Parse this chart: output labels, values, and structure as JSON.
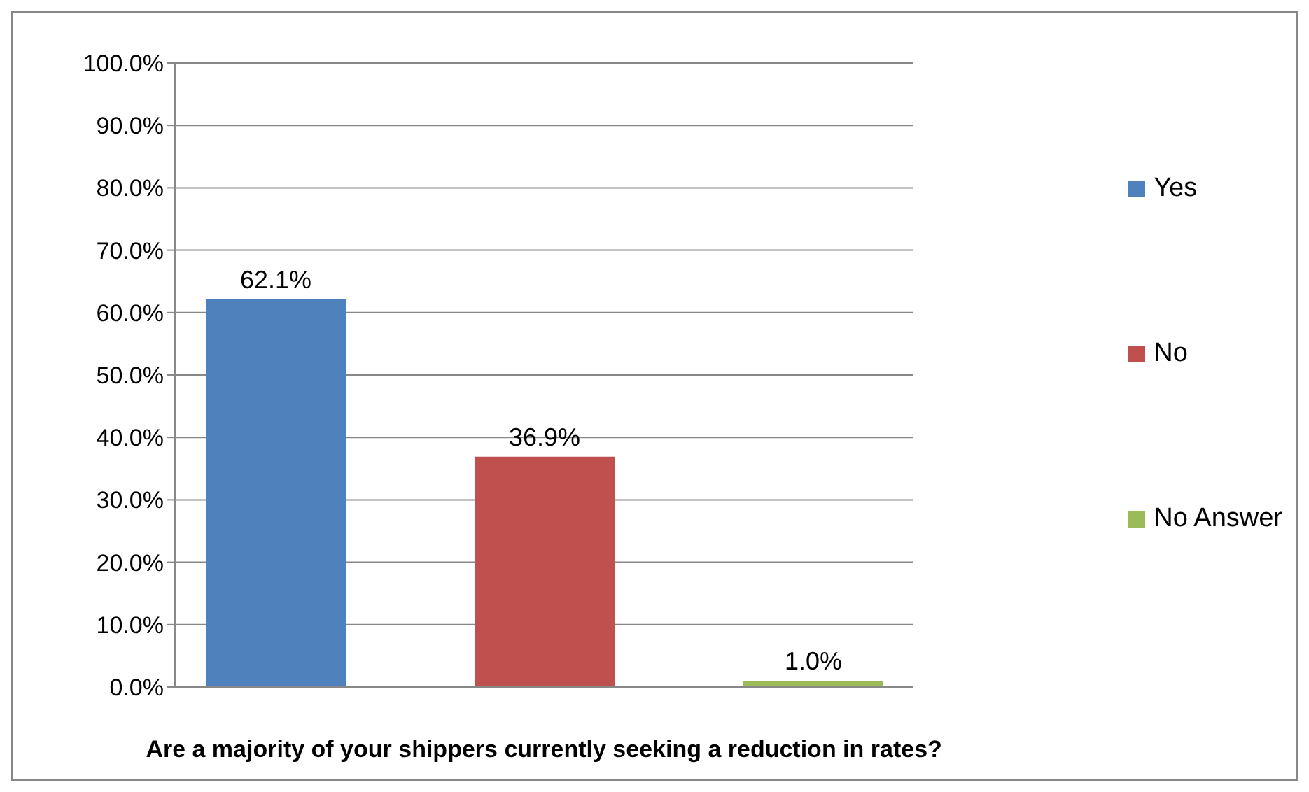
{
  "chart_data": {
    "type": "bar",
    "xlabel": "Are a majority of your shippers currently seeking a reduction in rates?",
    "categories": [
      null
    ],
    "series": [
      {
        "name": "Yes",
        "color": "#4f81bd",
        "values": [
          62.1
        ],
        "value_labels": [
          "62.1%"
        ]
      },
      {
        "name": "No",
        "color": "#c0504d",
        "values": [
          36.9
        ],
        "value_labels": [
          "36.9%"
        ]
      },
      {
        "name": "No Answer",
        "color": "#9bbb59",
        "values": [
          1.0
        ],
        "value_labels": [
          "1.0%"
        ]
      }
    ],
    "ylim": [
      0,
      100
    ],
    "yticks": [
      {
        "value": 0,
        "label": "0.0%"
      },
      {
        "value": 10,
        "label": "10.0%"
      },
      {
        "value": 20,
        "label": "20.0%"
      },
      {
        "value": 30,
        "label": "30.0%"
      },
      {
        "value": 40,
        "label": "40.0%"
      },
      {
        "value": 50,
        "label": "50.0%"
      },
      {
        "value": 60,
        "label": "60.0%"
      },
      {
        "value": 70,
        "label": "70.0%"
      },
      {
        "value": 80,
        "label": "80.0%"
      },
      {
        "value": 90,
        "label": "90.0%"
      },
      {
        "value": 100,
        "label": "100.0%"
      }
    ],
    "grid": "y",
    "legend": "right"
  }
}
